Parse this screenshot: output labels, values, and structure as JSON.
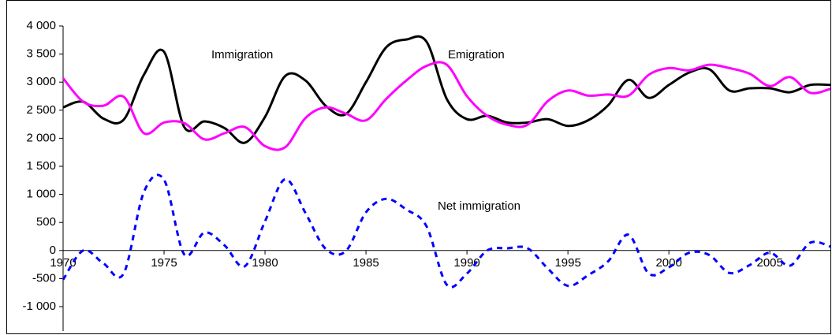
{
  "chart_data": {
    "type": "line",
    "x": [
      1970,
      1971,
      1972,
      1973,
      1974,
      1975,
      1976,
      1977,
      1978,
      1979,
      1980,
      1981,
      1982,
      1983,
      1984,
      1985,
      1986,
      1987,
      1988,
      1989,
      1990,
      1991,
      1992,
      1993,
      1994,
      1995,
      1996,
      1997,
      1998,
      1999,
      2000,
      2001,
      2002,
      2003,
      2004,
      2005,
      2006,
      2007,
      2008
    ],
    "series": [
      {
        "name": "Immigration",
        "color": "#000000",
        "dash": false,
        "values": [
          2550,
          2650,
          2350,
          2330,
          3130,
          3540,
          2200,
          2300,
          2180,
          1920,
          2380,
          3110,
          3030,
          2580,
          2430,
          3000,
          3620,
          3760,
          3720,
          2700,
          2340,
          2400,
          2280,
          2280,
          2340,
          2220,
          2320,
          2590,
          3040,
          2720,
          2950,
          3170,
          3230,
          2850,
          2890,
          2890,
          2820,
          2950,
          2950
        ]
      },
      {
        "name": "Emigration",
        "color": "#ff00ff",
        "dash": false,
        "values": [
          3070,
          2650,
          2580,
          2740,
          2090,
          2280,
          2270,
          1980,
          2090,
          2200,
          1860,
          1840,
          2360,
          2550,
          2440,
          2320,
          2700,
          3030,
          3290,
          3310,
          2750,
          2400,
          2240,
          2240,
          2660,
          2850,
          2760,
          2780,
          2760,
          3130,
          3250,
          3210,
          3310,
          3250,
          3150,
          2930,
          3090,
          2810,
          2880
        ]
      },
      {
        "name": "Net immigration",
        "color": "#0000ff",
        "dash": true,
        "values": [
          -520,
          0,
          -230,
          -410,
          1040,
          1260,
          -70,
          320,
          90,
          -280,
          520,
          1270,
          670,
          30,
          -10,
          680,
          920,
          730,
          430,
          -610,
          -410,
          0,
          40,
          40,
          -320,
          -630,
          -440,
          -190,
          280,
          -410,
          -300,
          -40,
          -80,
          -400,
          -260,
          -40,
          -270,
          140,
          70
        ]
      }
    ],
    "xlim": [
      1970,
      2008
    ],
    "xticks": [
      1970,
      1975,
      1980,
      1985,
      1990,
      1995,
      2000,
      2005
    ],
    "ylim": [
      -1000,
      4000
    ],
    "yticks": [
      {
        "value": -1000,
        "label": "-1 000"
      },
      -500,
      0,
      500,
      {
        "value": 1000,
        "label": "1 000"
      },
      {
        "value": 1500,
        "label": "1 500"
      },
      {
        "value": 2000,
        "label": "2 000"
      },
      {
        "value": 2500,
        "label": "2 500"
      },
      {
        "value": 3000,
        "label": "3 000"
      },
      {
        "value": 3500,
        "label": "3 500"
      },
      {
        "value": 4000,
        "label": "4 000"
      }
    ],
    "smooth": true
  }
}
